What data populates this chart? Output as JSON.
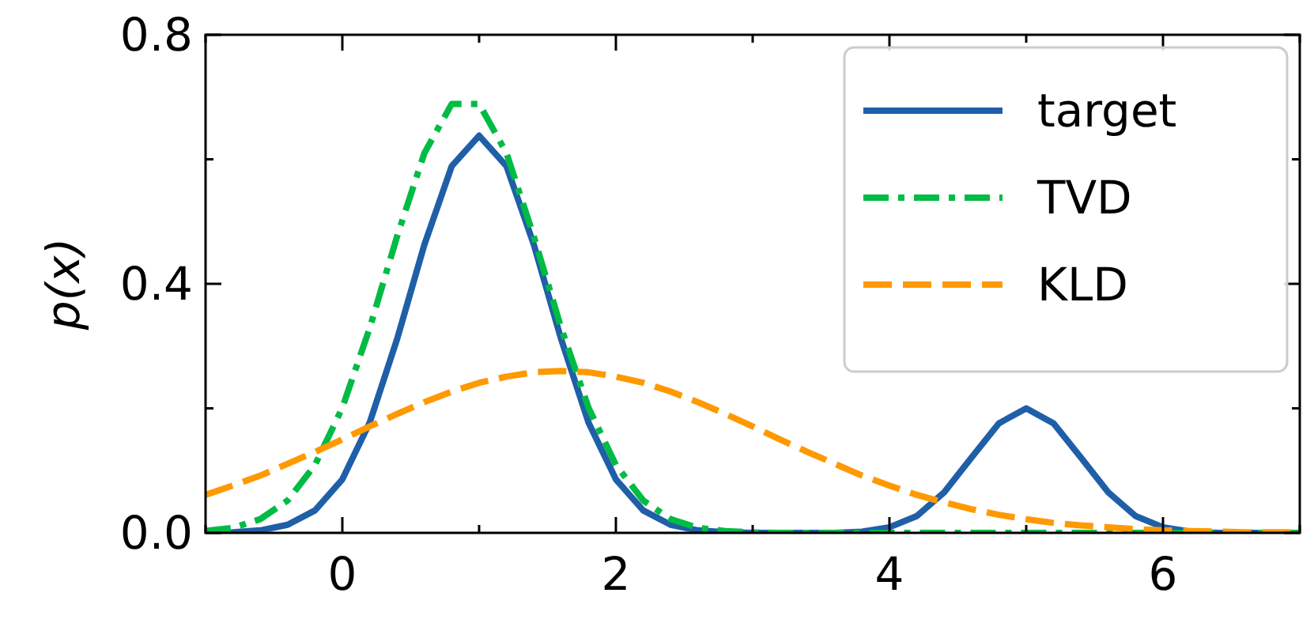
{
  "chart_data": {
    "type": "line",
    "ylabel": "p(x)",
    "x": [
      -1,
      -0.8,
      -0.6,
      -0.4,
      -0.2,
      0,
      0.2,
      0.4,
      0.6,
      0.8,
      1,
      1.2,
      1.4,
      1.6,
      1.8,
      2,
      2.2,
      2.4,
      2.6,
      2.8,
      3,
      3.2,
      3.4,
      3.6,
      3.8,
      4,
      4.2,
      4.4,
      4.6,
      4.8,
      5,
      5.2,
      5.4,
      5.6,
      5.8,
      6,
      6.2,
      6.4,
      6.6,
      6.8,
      7
    ],
    "series": [
      {
        "name": "target",
        "color": "#1f5fa8",
        "line_style": "solid",
        "values": [
          0,
          0.001,
          0.004,
          0.013,
          0.036,
          0.086,
          0.177,
          0.311,
          0.463,
          0.589,
          0.638,
          0.589,
          0.463,
          0.311,
          0.177,
          0.086,
          0.036,
          0.013,
          0.004,
          0.001,
          0,
          0,
          0,
          0,
          0.002,
          0.009,
          0.027,
          0.065,
          0.121,
          0.176,
          0.2,
          0.176,
          0.121,
          0.065,
          0.027,
          0.009,
          0.002,
          0,
          0,
          0,
          0
        ]
      },
      {
        "name": "TVD",
        "color": "#00bb44",
        "line_style": "dashdot",
        "values": [
          0.003,
          0.008,
          0.022,
          0.052,
          0.109,
          0.201,
          0.329,
          0.476,
          0.61,
          0.689,
          0.689,
          0.61,
          0.476,
          0.329,
          0.201,
          0.109,
          0.052,
          0.022,
          0.008,
          0.003,
          0.001,
          0,
          0,
          0,
          0,
          0,
          0,
          0,
          0,
          0,
          0,
          0,
          0,
          0,
          0,
          0,
          0,
          0,
          0,
          0,
          0
        ]
      },
      {
        "name": "KLD",
        "color": "#ff9900",
        "line_style": "dashed",
        "values": [
          0.061,
          0.076,
          0.092,
          0.111,
          0.13,
          0.15,
          0.171,
          0.191,
          0.21,
          0.227,
          0.241,
          0.251,
          0.258,
          0.26,
          0.258,
          0.251,
          0.241,
          0.227,
          0.21,
          0.191,
          0.171,
          0.15,
          0.13,
          0.111,
          0.092,
          0.076,
          0.061,
          0.049,
          0.038,
          0.029,
          0.022,
          0.016,
          0.012,
          0.009,
          0.006,
          0.004,
          0.003,
          0.002,
          0.001,
          0.001,
          0.001
        ]
      }
    ],
    "xlim": [
      -1,
      7
    ],
    "ylim": [
      0,
      0.8
    ],
    "xticks": [
      {
        "value": -1,
        "label": null
      },
      0,
      {
        "value": 1,
        "label": null
      },
      2,
      {
        "value": 3,
        "label": null
      },
      4,
      {
        "value": 5,
        "label": null
      },
      6,
      {
        "value": 7,
        "label": null
      }
    ],
    "yticks": [
      {
        "value": 0,
        "label": "0.0"
      },
      {
        "value": 0.2,
        "label": null
      },
      {
        "value": 0.4,
        "label": "0.4"
      },
      {
        "value": 0.6,
        "label": null
      },
      {
        "value": 0.8,
        "label": "0.8"
      }
    ],
    "legend": "top right",
    "grid": false
  }
}
